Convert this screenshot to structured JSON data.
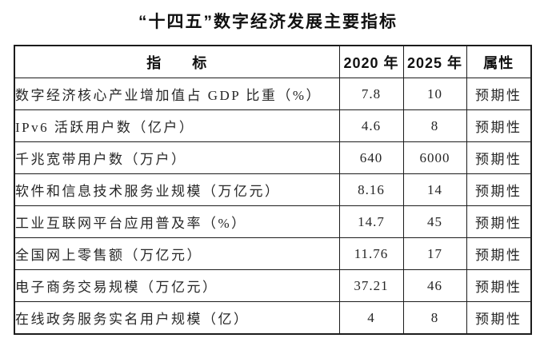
{
  "page": {
    "title": "“十四五”数字经济发展主要指标"
  },
  "table": {
    "headers": {
      "indicator": "指　　标",
      "y2020": "2020 年",
      "y2025": "2025 年",
      "attribute": "属性"
    },
    "rows": [
      {
        "indicator": "数字经济核心产业增加值占 GDP 比重（%）",
        "y2020": "7.8",
        "y2025": "10",
        "attribute": "预期性"
      },
      {
        "indicator": "IPv6 活跃用户数（亿户）",
        "y2020": "4.6",
        "y2025": "8",
        "attribute": "预期性"
      },
      {
        "indicator": "千兆宽带用户数（万户）",
        "y2020": "640",
        "y2025": "6000",
        "attribute": "预期性"
      },
      {
        "indicator": "软件和信息技术服务业规模（万亿元）",
        "y2020": "8.16",
        "y2025": "14",
        "attribute": "预期性"
      },
      {
        "indicator": "工业互联网平台应用普及率（%）",
        "y2020": "14.7",
        "y2025": "45",
        "attribute": "预期性"
      },
      {
        "indicator": "全国网上零售额（万亿元）",
        "y2020": "11.76",
        "y2025": "17",
        "attribute": "预期性"
      },
      {
        "indicator": "电子商务交易规模（万亿元）",
        "y2020": "37.21",
        "y2025": "46",
        "attribute": "预期性"
      },
      {
        "indicator": "在线政务服务实名用户规模（亿）",
        "y2020": "4",
        "y2025": "8",
        "attribute": "预期性"
      }
    ]
  }
}
